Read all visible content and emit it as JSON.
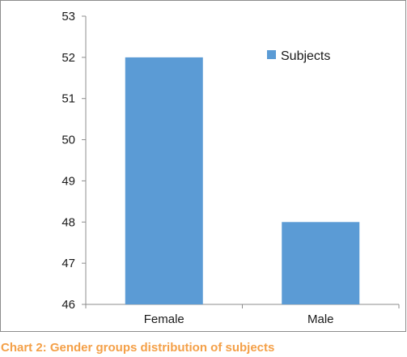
{
  "chart_data": {
    "type": "bar",
    "categories": [
      "Female",
      "Male"
    ],
    "series": [
      {
        "name": "Subjects",
        "values": [
          52,
          48
        ]
      }
    ],
    "ylim": [
      46,
      53
    ],
    "yticks": [
      "46",
      "47",
      "48",
      "49",
      "50",
      "51",
      "52",
      "53"
    ],
    "title": "",
    "xlabel": "",
    "ylabel": "",
    "legend_position": "top-right",
    "grid": false,
    "bar_color": "#5b9bd5",
    "axis_color": "#8c8c8c"
  },
  "caption": "Chart 2: Gender groups distribution of subjects",
  "caption_color": "#f4a048"
}
